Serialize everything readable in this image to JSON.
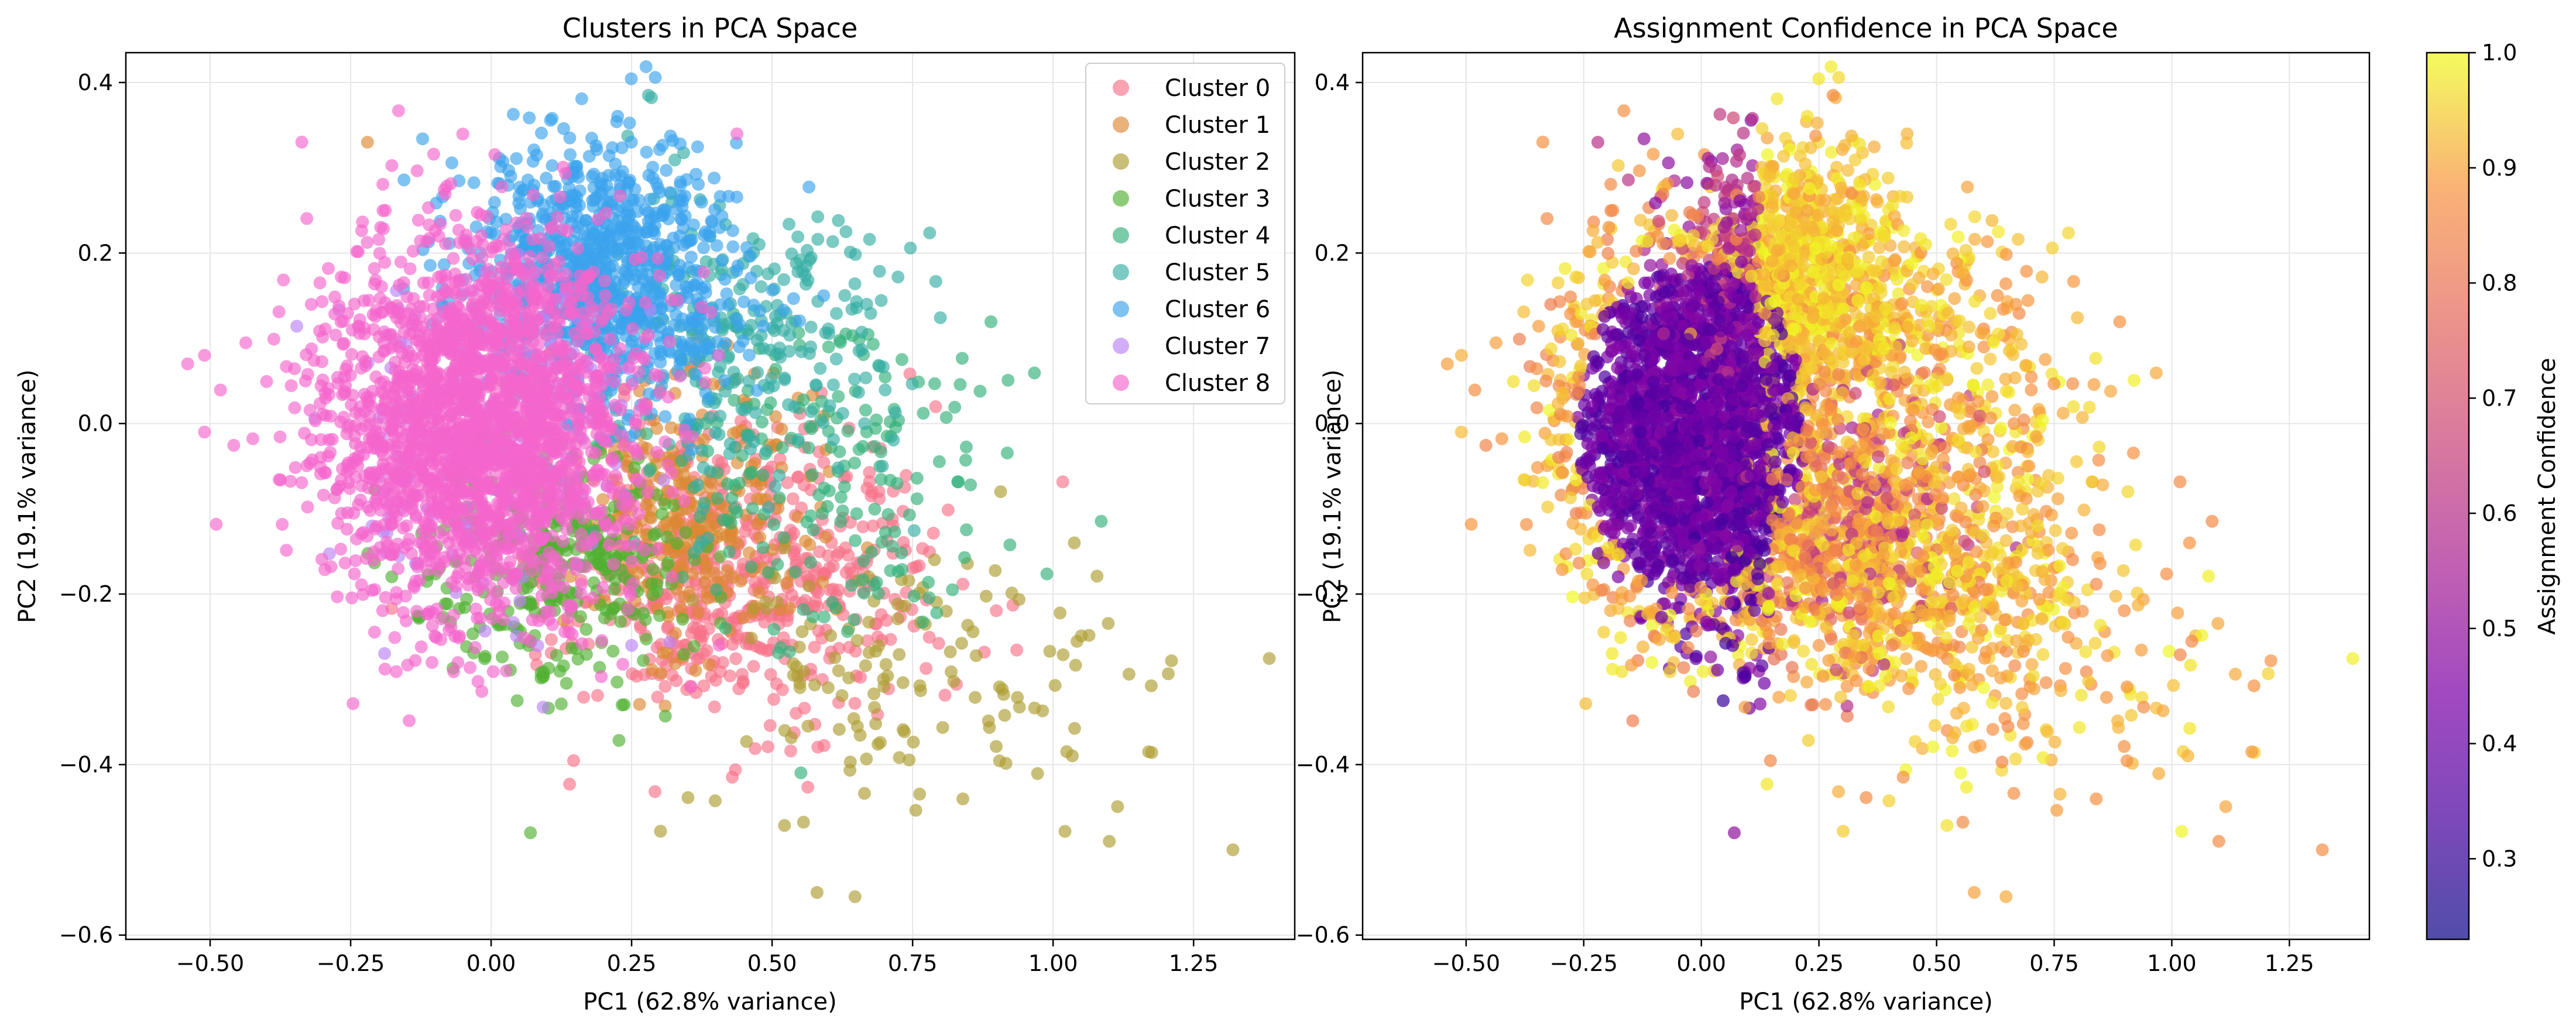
{
  "chart_data": [
    {
      "type": "scatter",
      "title": "Clusters in PCA Space",
      "xlabel": "PC1 (62.8% variance)",
      "ylabel": "PC2 (19.1% variance)",
      "xlim": [
        -0.65,
        1.43
      ],
      "ylim": [
        -0.605,
        0.435
      ],
      "xticks": [
        -0.5,
        -0.25,
        0,
        0.25,
        0.5,
        0.75,
        1.0,
        1.25
      ],
      "xtick_labels": [
        "−0.50",
        "−0.25",
        "0.00",
        "0.25",
        "0.50",
        "0.75",
        "1.00",
        "1.25"
      ],
      "yticks": [
        -0.6,
        -0.4,
        -0.2,
        0.0,
        0.2,
        0.4
      ],
      "ytick_labels": [
        "−0.6",
        "−0.4",
        "−0.2",
        "0.0",
        "0.2",
        "0.4"
      ],
      "grid": true,
      "legend_position": "top-right",
      "series": [
        {
          "name": "Cluster 0",
          "color": "#f77189",
          "center": [
            0.45,
            -0.18
          ],
          "spread": [
            0.16,
            0.09
          ],
          "n": 600
        },
        {
          "name": "Cluster 1",
          "color": "#dc8932",
          "center": [
            0.35,
            -0.1
          ],
          "spread": [
            0.11,
            0.08
          ],
          "n": 300
        },
        {
          "name": "Cluster 2",
          "color": "#ae9d31",
          "center": [
            0.78,
            -0.3
          ],
          "spread": [
            0.18,
            0.09
          ],
          "n": 140
        },
        {
          "name": "Cluster 3",
          "color": "#50b131",
          "center": [
            0.12,
            -0.16
          ],
          "spread": [
            0.12,
            0.07
          ],
          "n": 350
        },
        {
          "name": "Cluster 4",
          "color": "#33b07a",
          "center": [
            0.6,
            -0.05
          ],
          "spread": [
            0.18,
            0.1
          ],
          "n": 200
        },
        {
          "name": "Cluster 5",
          "color": "#36ada4",
          "center": [
            0.45,
            0.1
          ],
          "spread": [
            0.14,
            0.09
          ],
          "n": 250
        },
        {
          "name": "Cluster 6",
          "color": "#3ba3ec",
          "center": [
            0.2,
            0.17
          ],
          "spread": [
            0.12,
            0.08
          ],
          "n": 900
        },
        {
          "name": "Cluster 7",
          "color": "#bb83f4",
          "center": [
            -0.02,
            0.0
          ],
          "spread": [
            0.14,
            0.11
          ],
          "n": 200
        },
        {
          "name": "Cluster 8",
          "color": "#f565cc",
          "center": [
            -0.02,
            0.0
          ],
          "spread": [
            0.14,
            0.11
          ],
          "n": 2200
        }
      ],
      "outliers": [
        {
          "series": 2,
          "x": 1.32,
          "y": -0.5
        },
        {
          "series": 2,
          "x": 0.58,
          "y": -0.55
        },
        {
          "series": 2,
          "x": 1.17,
          "y": -0.385
        },
        {
          "series": 2,
          "x": 1.1,
          "y": -0.49
        },
        {
          "series": 3,
          "x": 0.07,
          "y": -0.48
        },
        {
          "series": 8,
          "x": -0.51,
          "y": 0.08
        },
        {
          "series": 8,
          "x": -0.51,
          "y": -0.01
        },
        {
          "series": 8,
          "x": -0.54,
          "y": 0.07
        },
        {
          "series": 5,
          "x": 0.28,
          "y": 0.385
        },
        {
          "series": 1,
          "x": -0.22,
          "y": 0.33
        }
      ]
    },
    {
      "type": "scatter",
      "title": "Assignment Confidence in PCA Space",
      "xlabel": "PC1 (62.8% variance)",
      "ylabel": "PC2 (19.1% variance)",
      "xlim": [
        -0.72,
        1.42
      ],
      "ylim": [
        -0.605,
        0.435
      ],
      "xticks": [
        -0.5,
        -0.25,
        0,
        0.25,
        0.5,
        0.75,
        1.0,
        1.25
      ],
      "xtick_labels": [
        "−0.50",
        "−0.25",
        "0.00",
        "0.25",
        "0.50",
        "0.75",
        "1.00",
        "1.25"
      ],
      "yticks": [
        -0.6,
        -0.4,
        -0.2,
        0.0,
        0.2,
        0.4
      ],
      "ytick_labels": [
        "−0.6",
        "−0.4",
        "−0.2",
        "0.0",
        "0.2",
        "0.4"
      ],
      "grid": true,
      "colormap": "plasma",
      "colorbar": {
        "label": "Assignment Confidence",
        "range": [
          0.23,
          1.0
        ],
        "ticks": [
          0.3,
          0.4,
          0.5,
          0.6,
          0.7,
          0.8,
          0.9,
          1.0
        ],
        "tick_labels": [
          "0.3",
          "0.4",
          "0.5",
          "0.6",
          "0.7",
          "0.8",
          "0.9",
          "1.0"
        ]
      }
    }
  ]
}
